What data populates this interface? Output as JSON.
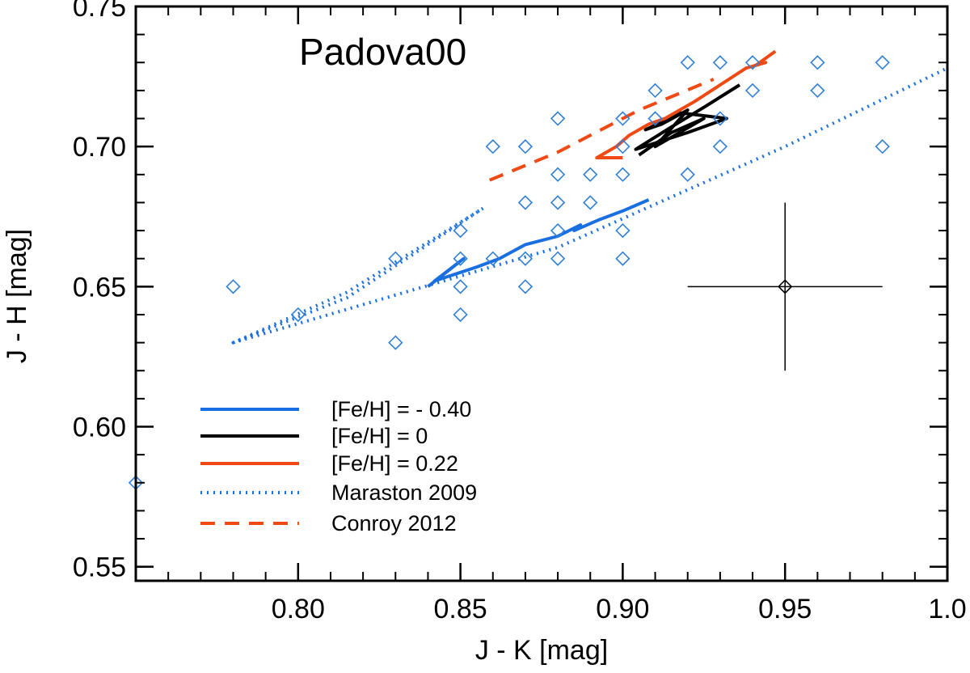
{
  "chart_data": {
    "type": "scatter",
    "title": "Padova00",
    "xlabel": "J - K [mag]",
    "ylabel": "J - H [mag]",
    "xlim": [
      0.75,
      1.0
    ],
    "ylim": [
      0.545,
      0.75
    ],
    "x_ticks": [
      "0.80",
      "0.85",
      "0.90",
      "0.95",
      "1.0"
    ],
    "x_tick_values": [
      0.8,
      0.85,
      0.9,
      0.95,
      1.0
    ],
    "y_ticks": [
      "0.55",
      "0.60",
      "0.65",
      "0.70",
      "0.75"
    ],
    "y_tick_values": [
      0.55,
      0.6,
      0.65,
      0.7,
      0.75
    ],
    "x_minor_step": 0.01,
    "y_minor_step": 0.01,
    "grid": false,
    "legend_position": "bottom-left",
    "colors": {
      "blue": "#1a6fe0",
      "black": "#000000",
      "orange": "#f04a14",
      "diamond": "#2f7fd8"
    },
    "scatter_points": [
      [
        0.75,
        0.58
      ],
      [
        0.78,
        0.65
      ],
      [
        0.8,
        0.64
      ],
      [
        0.83,
        0.66
      ],
      [
        0.83,
        0.63
      ],
      [
        0.85,
        0.67
      ],
      [
        0.85,
        0.66
      ],
      [
        0.85,
        0.65
      ],
      [
        0.85,
        0.64
      ],
      [
        0.86,
        0.7
      ],
      [
        0.86,
        0.66
      ],
      [
        0.87,
        0.7
      ],
      [
        0.87,
        0.68
      ],
      [
        0.87,
        0.66
      ],
      [
        0.87,
        0.65
      ],
      [
        0.88,
        0.71
      ],
      [
        0.88,
        0.69
      ],
      [
        0.88,
        0.68
      ],
      [
        0.88,
        0.67
      ],
      [
        0.88,
        0.66
      ],
      [
        0.89,
        0.69
      ],
      [
        0.89,
        0.68
      ],
      [
        0.9,
        0.71
      ],
      [
        0.9,
        0.7
      ],
      [
        0.9,
        0.69
      ],
      [
        0.9,
        0.67
      ],
      [
        0.9,
        0.66
      ],
      [
        0.91,
        0.72
      ],
      [
        0.91,
        0.71
      ],
      [
        0.92,
        0.73
      ],
      [
        0.92,
        0.69
      ],
      [
        0.93,
        0.73
      ],
      [
        0.93,
        0.71
      ],
      [
        0.93,
        0.7
      ],
      [
        0.94,
        0.73
      ],
      [
        0.94,
        0.72
      ],
      [
        0.96,
        0.73
      ],
      [
        0.96,
        0.72
      ],
      [
        0.98,
        0.73
      ],
      [
        0.98,
        0.7
      ]
    ],
    "error_point": {
      "x": 0.95,
      "y": 0.65,
      "x_err": 0.03,
      "y_err": 0.03
    },
    "series": [
      {
        "name": "[Fe/H] = - 0.40",
        "color": "#1a6fe0",
        "style": "solid",
        "points": [
          [
            0.84,
            0.65
          ],
          [
            0.851,
            0.66
          ],
          [
            0.842,
            0.652
          ],
          [
            0.855,
            0.657
          ],
          [
            0.862,
            0.66
          ],
          [
            0.87,
            0.665
          ],
          [
            0.88,
            0.668
          ],
          [
            0.887,
            0.672
          ],
          [
            0.885,
            0.67
          ],
          [
            0.893,
            0.674
          ],
          [
            0.9,
            0.677
          ],
          [
            0.908,
            0.681
          ]
        ]
      },
      {
        "name": "[Fe/H] = 0",
        "color": "#000000",
        "style": "solid",
        "points": [
          [
            0.905,
            0.697
          ],
          [
            0.915,
            0.705
          ],
          [
            0.925,
            0.71
          ],
          [
            0.91,
            0.7
          ],
          [
            0.92,
            0.713
          ],
          [
            0.912,
            0.708
          ],
          [
            0.907,
            0.706
          ],
          [
            0.918,
            0.712
          ],
          [
            0.932,
            0.71
          ],
          [
            0.92,
            0.705
          ],
          [
            0.904,
            0.699
          ],
          [
            0.915,
            0.707
          ],
          [
            0.925,
            0.714
          ],
          [
            0.936,
            0.722
          ]
        ]
      },
      {
        "name": "[Fe/H] = 0.22",
        "color": "#f04a14",
        "style": "solid",
        "points": [
          [
            0.9,
            0.696
          ],
          [
            0.892,
            0.696
          ],
          [
            0.898,
            0.7
          ],
          [
            0.902,
            0.704
          ],
          [
            0.908,
            0.708
          ],
          [
            0.913,
            0.71
          ],
          [
            0.922,
            0.716
          ],
          [
            0.93,
            0.722
          ],
          [
            0.938,
            0.728
          ],
          [
            0.944,
            0.73
          ],
          [
            0.941,
            0.729
          ],
          [
            0.947,
            0.734
          ]
        ]
      },
      {
        "name": "Maraston 2009",
        "color": "#1a6fe0",
        "style": "dotted",
        "points": [
          [
            0.78,
            0.63
          ],
          [
            0.815,
            0.648
          ],
          [
            0.857,
            0.678
          ],
          [
            0.815,
            0.646
          ],
          [
            0.78,
            0.63
          ],
          [
            0.88,
            0.664
          ],
          [
            0.95,
            0.7
          ],
          [
            1.0,
            0.728
          ]
        ]
      },
      {
        "name": "Conroy 2012",
        "color": "#f04a14",
        "style": "dashed",
        "points": [
          [
            0.859,
            0.688
          ],
          [
            0.88,
            0.698
          ],
          [
            0.905,
            0.713
          ],
          [
            0.928,
            0.724
          ]
        ]
      }
    ],
    "legend_entries": [
      "[Fe/H] = - 0.40",
      "[Fe/H] = 0",
      "[Fe/H] = 0.22",
      "Maraston 2009",
      "Conroy 2012"
    ]
  }
}
